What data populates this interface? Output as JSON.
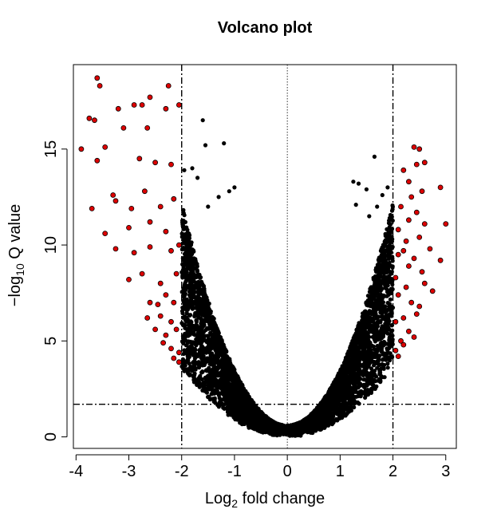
{
  "chart_data": {
    "type": "scatter",
    "title": "Volcano plot",
    "xlabel": {
      "prefix": "Log",
      "sub": "2",
      "suffix": " fold change"
    },
    "ylabel": {
      "prefix": "−log",
      "sub": "10",
      "suffix": " Q value"
    },
    "xlim": [
      -4.05,
      3.2
    ],
    "ylim": [
      -0.6,
      19.4
    ],
    "xticks": [
      -4,
      -3,
      -2,
      -1,
      0,
      1,
      2,
      3
    ],
    "yticks": [
      0,
      5,
      10,
      15
    ],
    "xtick_labels": [
      "-4",
      "-3",
      "-2",
      "-1",
      "0",
      "1",
      "2",
      "3"
    ],
    "ytick_labels": [
      "0",
      "5",
      "10",
      "15"
    ],
    "grid": false,
    "thresholds": {
      "fold_change": [
        -2,
        2
      ],
      "q_value": 1.7,
      "center": 0
    },
    "colors": {
      "significant": "#dd0000",
      "not_significant": "#000000",
      "outline": "#000000"
    },
    "series": [
      {
        "name": "",
        "color": "#000000",
        "points": [
          [
            -1.6,
            16.5
          ],
          [
            -1.2,
            15.3
          ],
          [
            -1.55,
            15.2
          ],
          [
            -1.8,
            14.0
          ],
          [
            -1.7,
            13.5
          ],
          [
            -1.0,
            13.0
          ],
          [
            -1.1,
            12.8
          ],
          [
            -1.95,
            13.9
          ],
          [
            -1.3,
            12.5
          ],
          [
            -1.5,
            12.0
          ],
          [
            1.25,
            13.3
          ],
          [
            1.35,
            13.2
          ],
          [
            1.65,
            14.6
          ],
          [
            1.5,
            12.9
          ],
          [
            1.3,
            12.1
          ],
          [
            1.8,
            12.6
          ],
          [
            1.7,
            12.0
          ],
          [
            1.9,
            13.0
          ],
          [
            1.55,
            11.5
          ]
        ]
      },
      {
        "name": "",
        "color": "#dd0000",
        "points": [
          [
            -3.6,
            18.7
          ],
          [
            -3.55,
            18.3
          ],
          [
            -2.25,
            18.3
          ],
          [
            -3.75,
            16.6
          ],
          [
            -3.65,
            16.5
          ],
          [
            -3.2,
            17.1
          ],
          [
            -2.9,
            17.3
          ],
          [
            -2.75,
            17.3
          ],
          [
            -2.6,
            17.7
          ],
          [
            -2.3,
            17.1
          ],
          [
            -2.05,
            17.3
          ],
          [
            -3.1,
            16.1
          ],
          [
            -2.65,
            16.1
          ],
          [
            -3.9,
            15.0
          ],
          [
            -3.45,
            15.1
          ],
          [
            -3.7,
            11.9
          ],
          [
            -3.6,
            14.4
          ],
          [
            -2.8,
            14.5
          ],
          [
            -2.5,
            14.3
          ],
          [
            -2.2,
            14.2
          ],
          [
            -3.3,
            12.6
          ],
          [
            -3.25,
            12.3
          ],
          [
            -2.95,
            11.9
          ],
          [
            -2.7,
            12.8
          ],
          [
            -2.4,
            12.0
          ],
          [
            -2.15,
            12.4
          ],
          [
            -3.45,
            10.6
          ],
          [
            -3.0,
            10.9
          ],
          [
            -2.6,
            11.2
          ],
          [
            -2.3,
            10.7
          ],
          [
            -3.25,
            9.8
          ],
          [
            -2.9,
            9.6
          ],
          [
            -2.6,
            9.9
          ],
          [
            -2.2,
            9.7
          ],
          [
            -2.05,
            10.0
          ],
          [
            -3.0,
            8.2
          ],
          [
            -2.75,
            8.5
          ],
          [
            -2.4,
            8.0
          ],
          [
            -2.1,
            8.5
          ],
          [
            -2.3,
            7.4
          ],
          [
            -2.6,
            7.0
          ],
          [
            -2.45,
            6.9
          ],
          [
            -2.15,
            7.0
          ],
          [
            -2.65,
            6.2
          ],
          [
            -2.4,
            6.3
          ],
          [
            -2.2,
            6.0
          ],
          [
            -2.5,
            5.6
          ],
          [
            -2.3,
            5.3
          ],
          [
            -2.1,
            5.6
          ],
          [
            -2.35,
            4.9
          ],
          [
            -2.2,
            4.6
          ],
          [
            -2.05,
            4.4
          ],
          [
            -2.15,
            4.1
          ],
          [
            -2.05,
            3.9
          ],
          [
            2.4,
            15.1
          ],
          [
            2.5,
            15.0
          ],
          [
            2.45,
            14.2
          ],
          [
            2.6,
            14.3
          ],
          [
            2.2,
            13.9
          ],
          [
            2.3,
            13.3
          ],
          [
            2.55,
            12.8
          ],
          [
            2.35,
            12.5
          ],
          [
            2.9,
            13.0
          ],
          [
            2.15,
            12.0
          ],
          [
            2.45,
            11.7
          ],
          [
            2.3,
            11.3
          ],
          [
            2.6,
            11.1
          ],
          [
            3.0,
            11.1
          ],
          [
            2.1,
            10.8
          ],
          [
            2.25,
            10.2
          ],
          [
            2.5,
            10.4
          ],
          [
            2.2,
            9.7
          ],
          [
            2.1,
            9.5
          ],
          [
            2.4,
            9.3
          ],
          [
            2.7,
            9.8
          ],
          [
            2.9,
            9.2
          ],
          [
            2.3,
            8.9
          ],
          [
            2.55,
            8.6
          ],
          [
            2.05,
            8.3
          ],
          [
            2.25,
            7.8
          ],
          [
            2.6,
            8.0
          ],
          [
            2.75,
            7.6
          ],
          [
            2.1,
            7.4
          ],
          [
            2.35,
            7.0
          ],
          [
            2.5,
            6.8
          ],
          [
            2.2,
            6.2
          ],
          [
            2.45,
            6.4
          ],
          [
            2.05,
            6.0
          ],
          [
            2.3,
            5.5
          ],
          [
            2.15,
            5.0
          ],
          [
            2.4,
            5.2
          ],
          [
            2.05,
            4.5
          ],
          [
            2.2,
            4.8
          ],
          [
            2.1,
            4.2
          ]
        ]
      }
    ]
  }
}
